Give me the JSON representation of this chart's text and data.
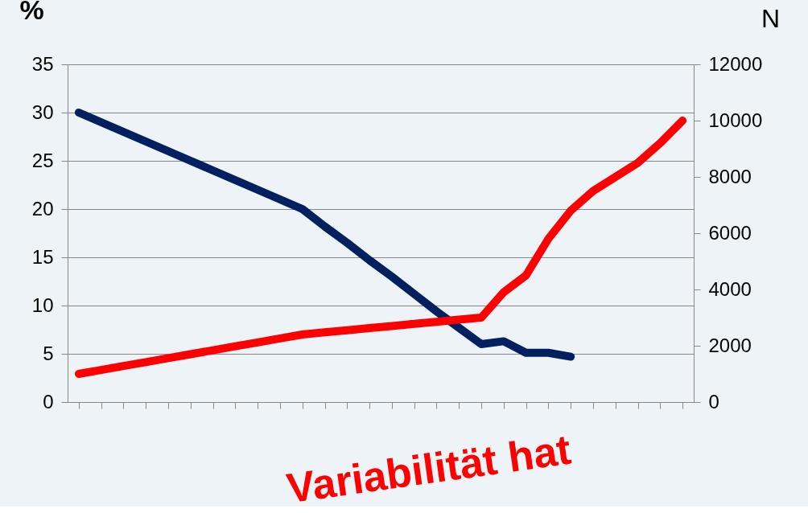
{
  "chart_data": {
    "type": "line",
    "categories": [
      null,
      null,
      null,
      null,
      null,
      null,
      null,
      null,
      null,
      null,
      null,
      null,
      null,
      null,
      null,
      null,
      null,
      null,
      null,
      null,
      null,
      null,
      null,
      null,
      null,
      null,
      null,
      null
    ],
    "series": [
      {
        "color": "#002060",
        "values": [
          30,
          29,
          28,
          27,
          26,
          25,
          24,
          23,
          22,
          21,
          20,
          18.2,
          16.5,
          14.7,
          13,
          11.2,
          9.4,
          7.7,
          6,
          6.3,
          5.1,
          5.1,
          4.7,
          null,
          null,
          null,
          null,
          null
        ]
      },
      {
        "color": "#ff0000",
        "axis": "y2",
        "values": [
          1000,
          1140,
          1280,
          1420,
          1560,
          1700,
          1840,
          1980,
          2120,
          2260,
          2400,
          2480,
          2550,
          2630,
          2700,
          2780,
          2850,
          2930,
          3000,
          3900,
          4500,
          5800,
          6800,
          7500,
          8000,
          8500,
          9200,
          10000
        ]
      }
    ],
    "ylabel": "%",
    "y2label": "N",
    "ylim": [
      0,
      35
    ],
    "yticks": [
      0,
      5,
      10,
      15,
      20,
      25,
      30,
      35
    ],
    "y2lim": [
      0,
      12000
    ],
    "y2ticks": [
      0,
      2000,
      4000,
      6000,
      8000,
      10000,
      12000
    ],
    "grid": "y",
    "tick_labels": "y",
    "marker": "none",
    "line_style": "solid",
    "annotations": [
      "Variabilität hat"
    ]
  }
}
